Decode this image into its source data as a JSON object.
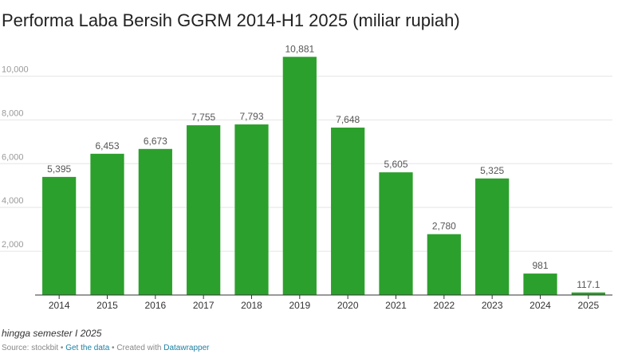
{
  "title": "Performa Laba Bersih GGRM 2014-H1 2025 (miliar rupiah)",
  "note": "hingga semester I 2025",
  "footer": {
    "source": "Source: stockbit",
    "sep": " • ",
    "get_data": "Get the data",
    "created": "Created with",
    "brand": "Datawrapper"
  },
  "colors": {
    "bar": "#2ca02c",
    "grid": "#e5e5e5",
    "axis": "#333333"
  },
  "chart_data": {
    "type": "bar",
    "categories": [
      "2014",
      "2015",
      "2016",
      "2017",
      "2018",
      "2019",
      "2020",
      "2021",
      "2022",
      "2023",
      "2024",
      "2025"
    ],
    "values": [
      5395,
      6453,
      6673,
      7755,
      7793,
      10881,
      7648,
      5605,
      2780,
      5325,
      981,
      117.1
    ],
    "value_labels": [
      "5,395",
      "6,453",
      "6,673",
      "7,755",
      "7,793",
      "10,881",
      "7,648",
      "5,605",
      "2,780",
      "5,325",
      "981",
      "117.1"
    ],
    "y_ticks": [
      2000,
      4000,
      6000,
      8000,
      10000
    ],
    "y_tick_labels": [
      "2,000",
      "4,000",
      "6,000",
      "8,000",
      "10,000"
    ],
    "ylim": [
      0,
      11000
    ],
    "grid": true
  }
}
